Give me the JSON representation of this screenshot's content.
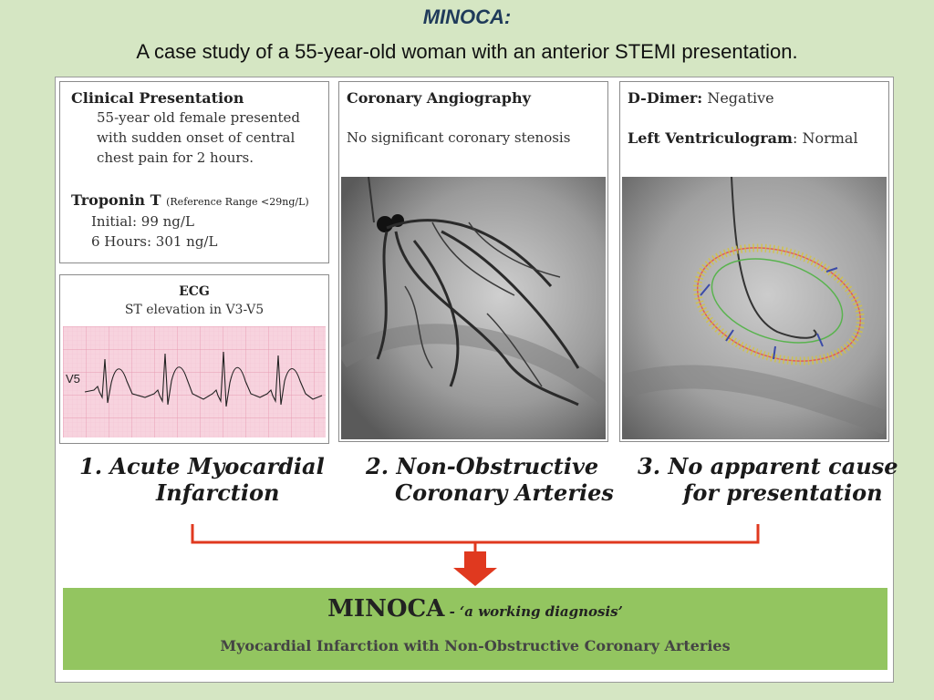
{
  "slide": {
    "title": "MINOCA:",
    "subtitle": "A case study of a 55-year-old woman with an anterior STEMI presentation."
  },
  "clinical": {
    "heading": "Clinical Presentation",
    "lines": [
      "55-year old female presented",
      "with sudden onset of central",
      "chest pain for 2 hours."
    ],
    "troponin_heading": "Troponin T",
    "troponin_reference": "(Reference Range <29ng/L)",
    "troponin_initial": "Initial: 99 ng/L",
    "troponin_6h": "6 Hours: 301 ng/L"
  },
  "ecg": {
    "heading": "ECG",
    "subheading": "ST elevation in V3-V5",
    "lead_label": "V5"
  },
  "angiography": {
    "heading": "Coronary Angiography",
    "finding": "No significant coronary stenosis"
  },
  "lv": {
    "ddimer_label": "D-Dimer:",
    "ddimer_value": "Negative",
    "ventriculogram_label": "Left Ventriculogram",
    "ventriculogram_value": ": Normal"
  },
  "criteria": [
    {
      "line1": "1.  Acute Myocardial",
      "line2": "Infarction"
    },
    {
      "line1": "2.  Non-Obstructive",
      "line2": "Coronary Arteries"
    },
    {
      "line1": "3.  No apparent cause",
      "line2": "for presentation"
    }
  ],
  "diagnosis": {
    "name": "MINOCA",
    "tagline": " - ‘a working diagnosis’",
    "expansion": "Myocardial Infarction with Non-Obstructive Coronary Arteries"
  },
  "colors": {
    "background": "#d5e6c3",
    "title_color": "#1f3a5a",
    "ecg_grid": "#f0b6c8",
    "arrow": "#e0391f",
    "diagnosis_band": "#93c560"
  }
}
